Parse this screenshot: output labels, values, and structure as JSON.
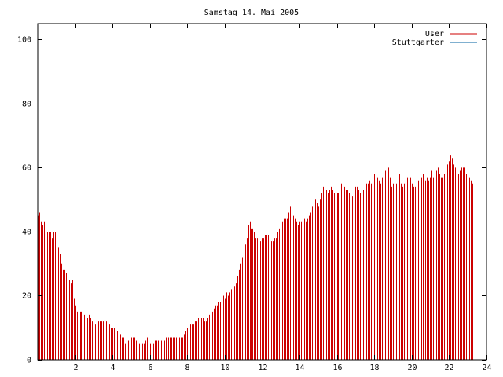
{
  "chart_data": {
    "type": "bar",
    "title": "Samstag 14. Mai 2005",
    "xlabel": "",
    "ylabel": "",
    "xlim": [
      0,
      24
    ],
    "ylim": [
      0,
      105
    ],
    "x_ticks": [
      "2",
      "4",
      "6",
      "8",
      "10",
      "12",
      "14",
      "16",
      "18",
      "20",
      "22",
      "24"
    ],
    "y_ticks": [
      "0",
      "20",
      "40",
      "60",
      "80",
      "100"
    ],
    "grid": false,
    "legend_position": "top-right",
    "series": [
      {
        "name": "User",
        "color": "#cc0000",
        "x_start": 0,
        "x_step": 0.0833,
        "values": [
          45,
          46,
          43,
          42,
          43,
          40,
          40,
          40,
          40,
          38,
          40,
          40,
          39,
          35,
          33,
          30,
          28,
          28,
          27,
          26,
          25,
          24,
          25,
          19,
          17,
          15,
          15,
          15,
          15,
          14,
          14,
          13,
          13,
          14,
          13,
          12,
          11,
          11,
          12,
          12,
          12,
          12,
          12,
          11,
          12,
          12,
          11,
          10,
          10,
          10,
          10,
          9,
          8,
          8,
          7,
          7,
          5,
          6,
          6,
          6,
          7,
          7,
          7,
          6,
          6,
          5,
          5,
          5,
          5,
          6,
          7,
          6,
          5,
          5,
          5,
          6,
          6,
          6,
          6,
          6,
          6,
          6,
          7,
          7,
          7,
          7,
          7,
          7,
          7,
          7,
          7,
          7,
          7,
          7,
          8,
          9,
          10,
          10,
          11,
          11,
          11,
          12,
          12,
          13,
          13,
          13,
          13,
          12,
          12,
          13,
          14,
          15,
          15,
          16,
          17,
          17,
          18,
          18,
          19,
          20,
          19,
          21,
          20,
          21,
          22,
          23,
          23,
          24,
          26,
          28,
          30,
          32,
          35,
          36,
          38,
          42,
          43,
          41,
          41,
          40,
          38,
          38,
          39,
          37,
          38,
          38,
          39,
          39,
          39,
          36,
          37,
          37,
          38,
          38,
          40,
          41,
          42,
          43,
          44,
          44,
          44,
          46,
          48,
          48,
          45,
          44,
          43,
          42,
          43,
          43,
          43,
          44,
          43,
          44,
          45,
          46,
          48,
          50,
          50,
          49,
          48,
          50,
          52,
          54,
          54,
          53,
          52,
          53,
          54,
          53,
          52,
          51,
          52,
          52,
          54,
          55,
          53,
          54,
          53,
          53,
          52,
          53,
          51,
          52,
          54,
          54,
          53,
          52,
          53,
          53,
          54,
          55,
          55,
          56,
          55,
          57,
          58,
          56,
          57,
          56,
          55,
          57,
          58,
          59,
          61,
          60,
          57,
          54,
          55,
          56,
          55,
          57,
          58,
          55,
          54,
          55,
          56,
          57,
          58,
          57,
          55,
          54,
          54,
          55,
          56,
          56,
          57,
          58,
          57,
          56,
          57,
          56,
          57,
          59,
          57,
          58,
          59,
          60,
          58,
          57,
          57,
          58,
          59,
          61,
          62,
          64,
          63,
          61,
          60,
          57,
          58,
          59,
          60,
          60,
          60,
          58,
          60,
          57,
          56,
          55
        ]
      },
      {
        "name": "Stuttgarter",
        "color": "#0060a0",
        "values": []
      }
    ]
  }
}
